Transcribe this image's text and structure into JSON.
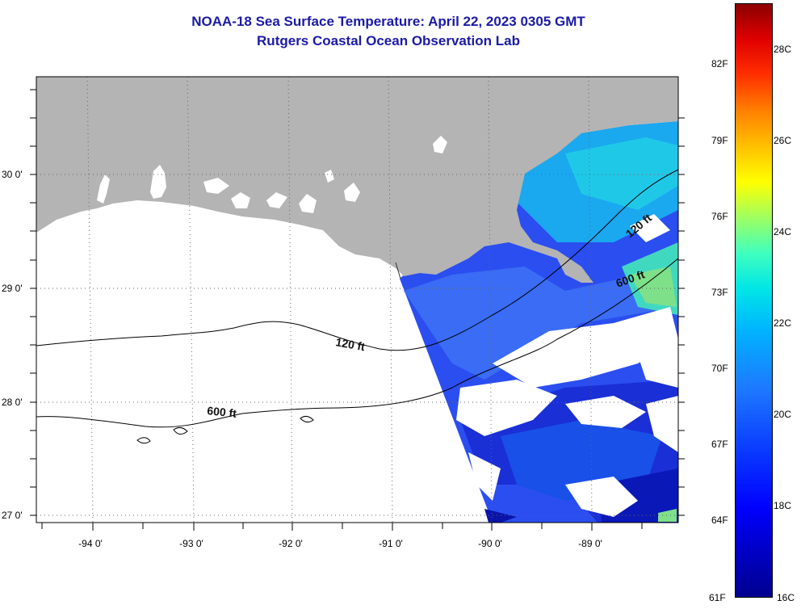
{
  "title": {
    "line1": "NOAA-18 Sea Surface Temperature:  April 22, 2023 0305 GMT",
    "line2": "Rutgers Coastal Ocean Observation Lab"
  },
  "map": {
    "lat_labels": [
      "30 0'",
      "29 0'",
      "28 0'",
      "27 0'"
    ],
    "lon_labels": [
      "-94 0'",
      "-93 0'",
      "-92 0'",
      "-91 0'",
      "-90 0'",
      "-89 0'"
    ],
    "contour_labels": [
      "120 ft",
      "600 ft",
      "600 ft",
      "120 ft"
    ],
    "colors": {
      "land": "#b4b4b4",
      "ocean_blank": "#ffffff",
      "contour": "#000000"
    }
  },
  "colorbar": {
    "fahrenheit": [
      "82F",
      "79F",
      "76F",
      "73F",
      "70F",
      "67F",
      "64F",
      "61F"
    ],
    "celsius": [
      "28C",
      "26C",
      "24C",
      "22C",
      "20C",
      "18C",
      "16C"
    ],
    "range_c": [
      16,
      29.5
    ]
  }
}
